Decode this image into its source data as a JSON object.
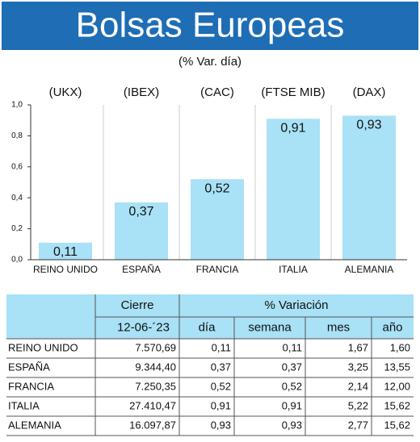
{
  "chart_data": {
    "type": "bar",
    "title": "Bolsas Europeas",
    "subtitle": "(% Var. día)",
    "categories": [
      "REINO UNIDO",
      "ESPAÑA",
      "FRANCIA",
      "ITALIA",
      "ALEMANIA"
    ],
    "indices": [
      "(UKX)",
      "(IBEX)",
      "(CAC)",
      "(FTSE MIB)",
      "(DAX)"
    ],
    "values": [
      0.11,
      0.37,
      0.52,
      0.91,
      0.93
    ],
    "value_labels": [
      "0,11",
      "0,37",
      "0,52",
      "0,91",
      "0,93"
    ],
    "color": "#a9e1f6",
    "ylim": [
      0,
      1
    ],
    "yticks": [
      {
        "value": 0,
        "label": "0,0"
      },
      {
        "value": 0.2,
        "label": "0,2"
      },
      {
        "value": 0.4,
        "label": "0,4"
      },
      {
        "value": 0.6,
        "label": "0,6"
      },
      {
        "value": 0.8,
        "label": "0,8"
      },
      {
        "value": 1,
        "label": "1,0"
      }
    ]
  },
  "table": {
    "header": [
      "Cierre",
      "% Variación"
    ],
    "date": "12-06-´23",
    "columns": [
      "día",
      "semana",
      "mes",
      "año"
    ],
    "rows": [
      [
        "REINO UNIDO",
        "7.570,69",
        "0,11",
        "0,11",
        "1,67",
        "1,60"
      ],
      [
        "ESPAÑA",
        "9.344,40",
        "0,37",
        "0,37",
        "3,25",
        "13,55"
      ],
      [
        "FRANCIA",
        "7.250,35",
        "0,52",
        "0,52",
        "2,14",
        "12,00"
      ],
      [
        "ITALIA",
        "27.410,47",
        "0,91",
        "0,91",
        "5,22",
        "15,62"
      ],
      [
        "ALEMANIA",
        "16.097,87",
        "0,93",
        "0,93",
        "2,77",
        "15,62"
      ]
    ]
  }
}
